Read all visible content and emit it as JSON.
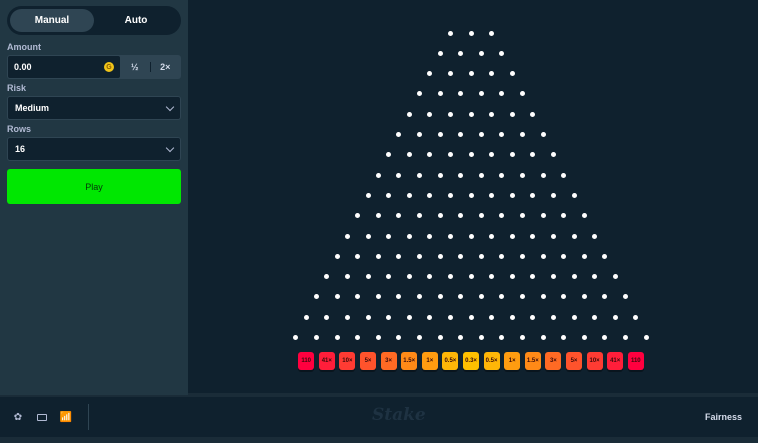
{
  "sidebar": {
    "tabs": [
      {
        "label": "Manual",
        "active": true
      },
      {
        "label": "Auto",
        "active": false
      }
    ],
    "amount": {
      "label": "Amount",
      "value": "0.00",
      "currency_icon": "coin-icon",
      "half_label": "½",
      "double_label": "2×"
    },
    "risk": {
      "label": "Risk",
      "value": "Medium"
    },
    "rows": {
      "label": "Rows",
      "value": "16"
    },
    "play_label": "Play"
  },
  "board": {
    "rows": 16,
    "multipliers": [
      "110",
      "41×",
      "10×",
      "5×",
      "3×",
      "1.5×",
      "1×",
      "0.5×",
      "0.3×",
      "0.5×",
      "1×",
      "1.5×",
      "3×",
      "5×",
      "10×",
      "41×",
      "110"
    ],
    "colors": [
      "#ff003f",
      "#ff1e3a",
      "#ff3b33",
      "#ff532c",
      "#ff6a24",
      "#ff8a17",
      "#ff9c10",
      "#ffb607",
      "#ffc000",
      "#ffb607",
      "#ff9c10",
      "#ff8a17",
      "#ff6a24",
      "#ff532c",
      "#ff3b33",
      "#ff1e3a",
      "#ff003f"
    ]
  },
  "footer": {
    "icons": [
      "gear-icon",
      "theatre-mode-icon",
      "stats-icon"
    ],
    "logo": "Stake",
    "fairness_label": "Fairness"
  },
  "colors": {
    "play": "#00e701",
    "sidebar": "#213743",
    "board": "#0f212e"
  }
}
